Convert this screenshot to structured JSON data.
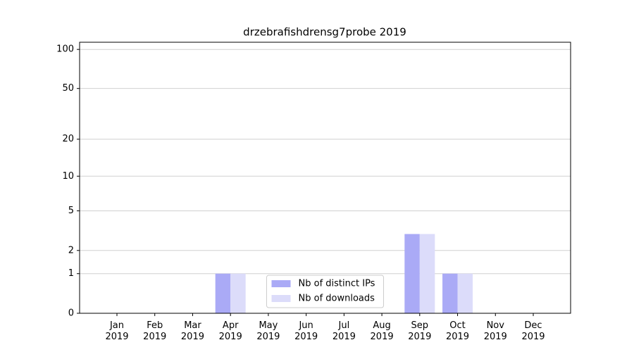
{
  "chart_data": {
    "type": "bar",
    "title": "drzebrafishdrensg7probe 2019",
    "categories": [
      "Jan\n2019",
      "Feb\n2019",
      "Mar\n2019",
      "Apr\n2019",
      "May\n2019",
      "Jun\n2019",
      "Jul\n2019",
      "Aug\n2019",
      "Sep\n2019",
      "Oct\n2019",
      "Nov\n2019",
      "Dec\n2019"
    ],
    "series": [
      {
        "name": "Nb of distinct IPs",
        "color": "#aaaaf6",
        "values": [
          0,
          0,
          0,
          1,
          0,
          0,
          0,
          0,
          3,
          1,
          0,
          0
        ]
      },
      {
        "name": "Nb of downloads",
        "color": "#dcdcfa",
        "values": [
          0,
          0,
          0,
          1,
          0,
          0,
          0,
          0,
          3,
          1,
          0,
          0
        ]
      }
    ],
    "yscale": "log1p",
    "ylim": [
      0,
      113.5
    ],
    "yticks": [
      0,
      1,
      2,
      5,
      10,
      20,
      50,
      100
    ],
    "grid": true,
    "legend": "lower center"
  }
}
